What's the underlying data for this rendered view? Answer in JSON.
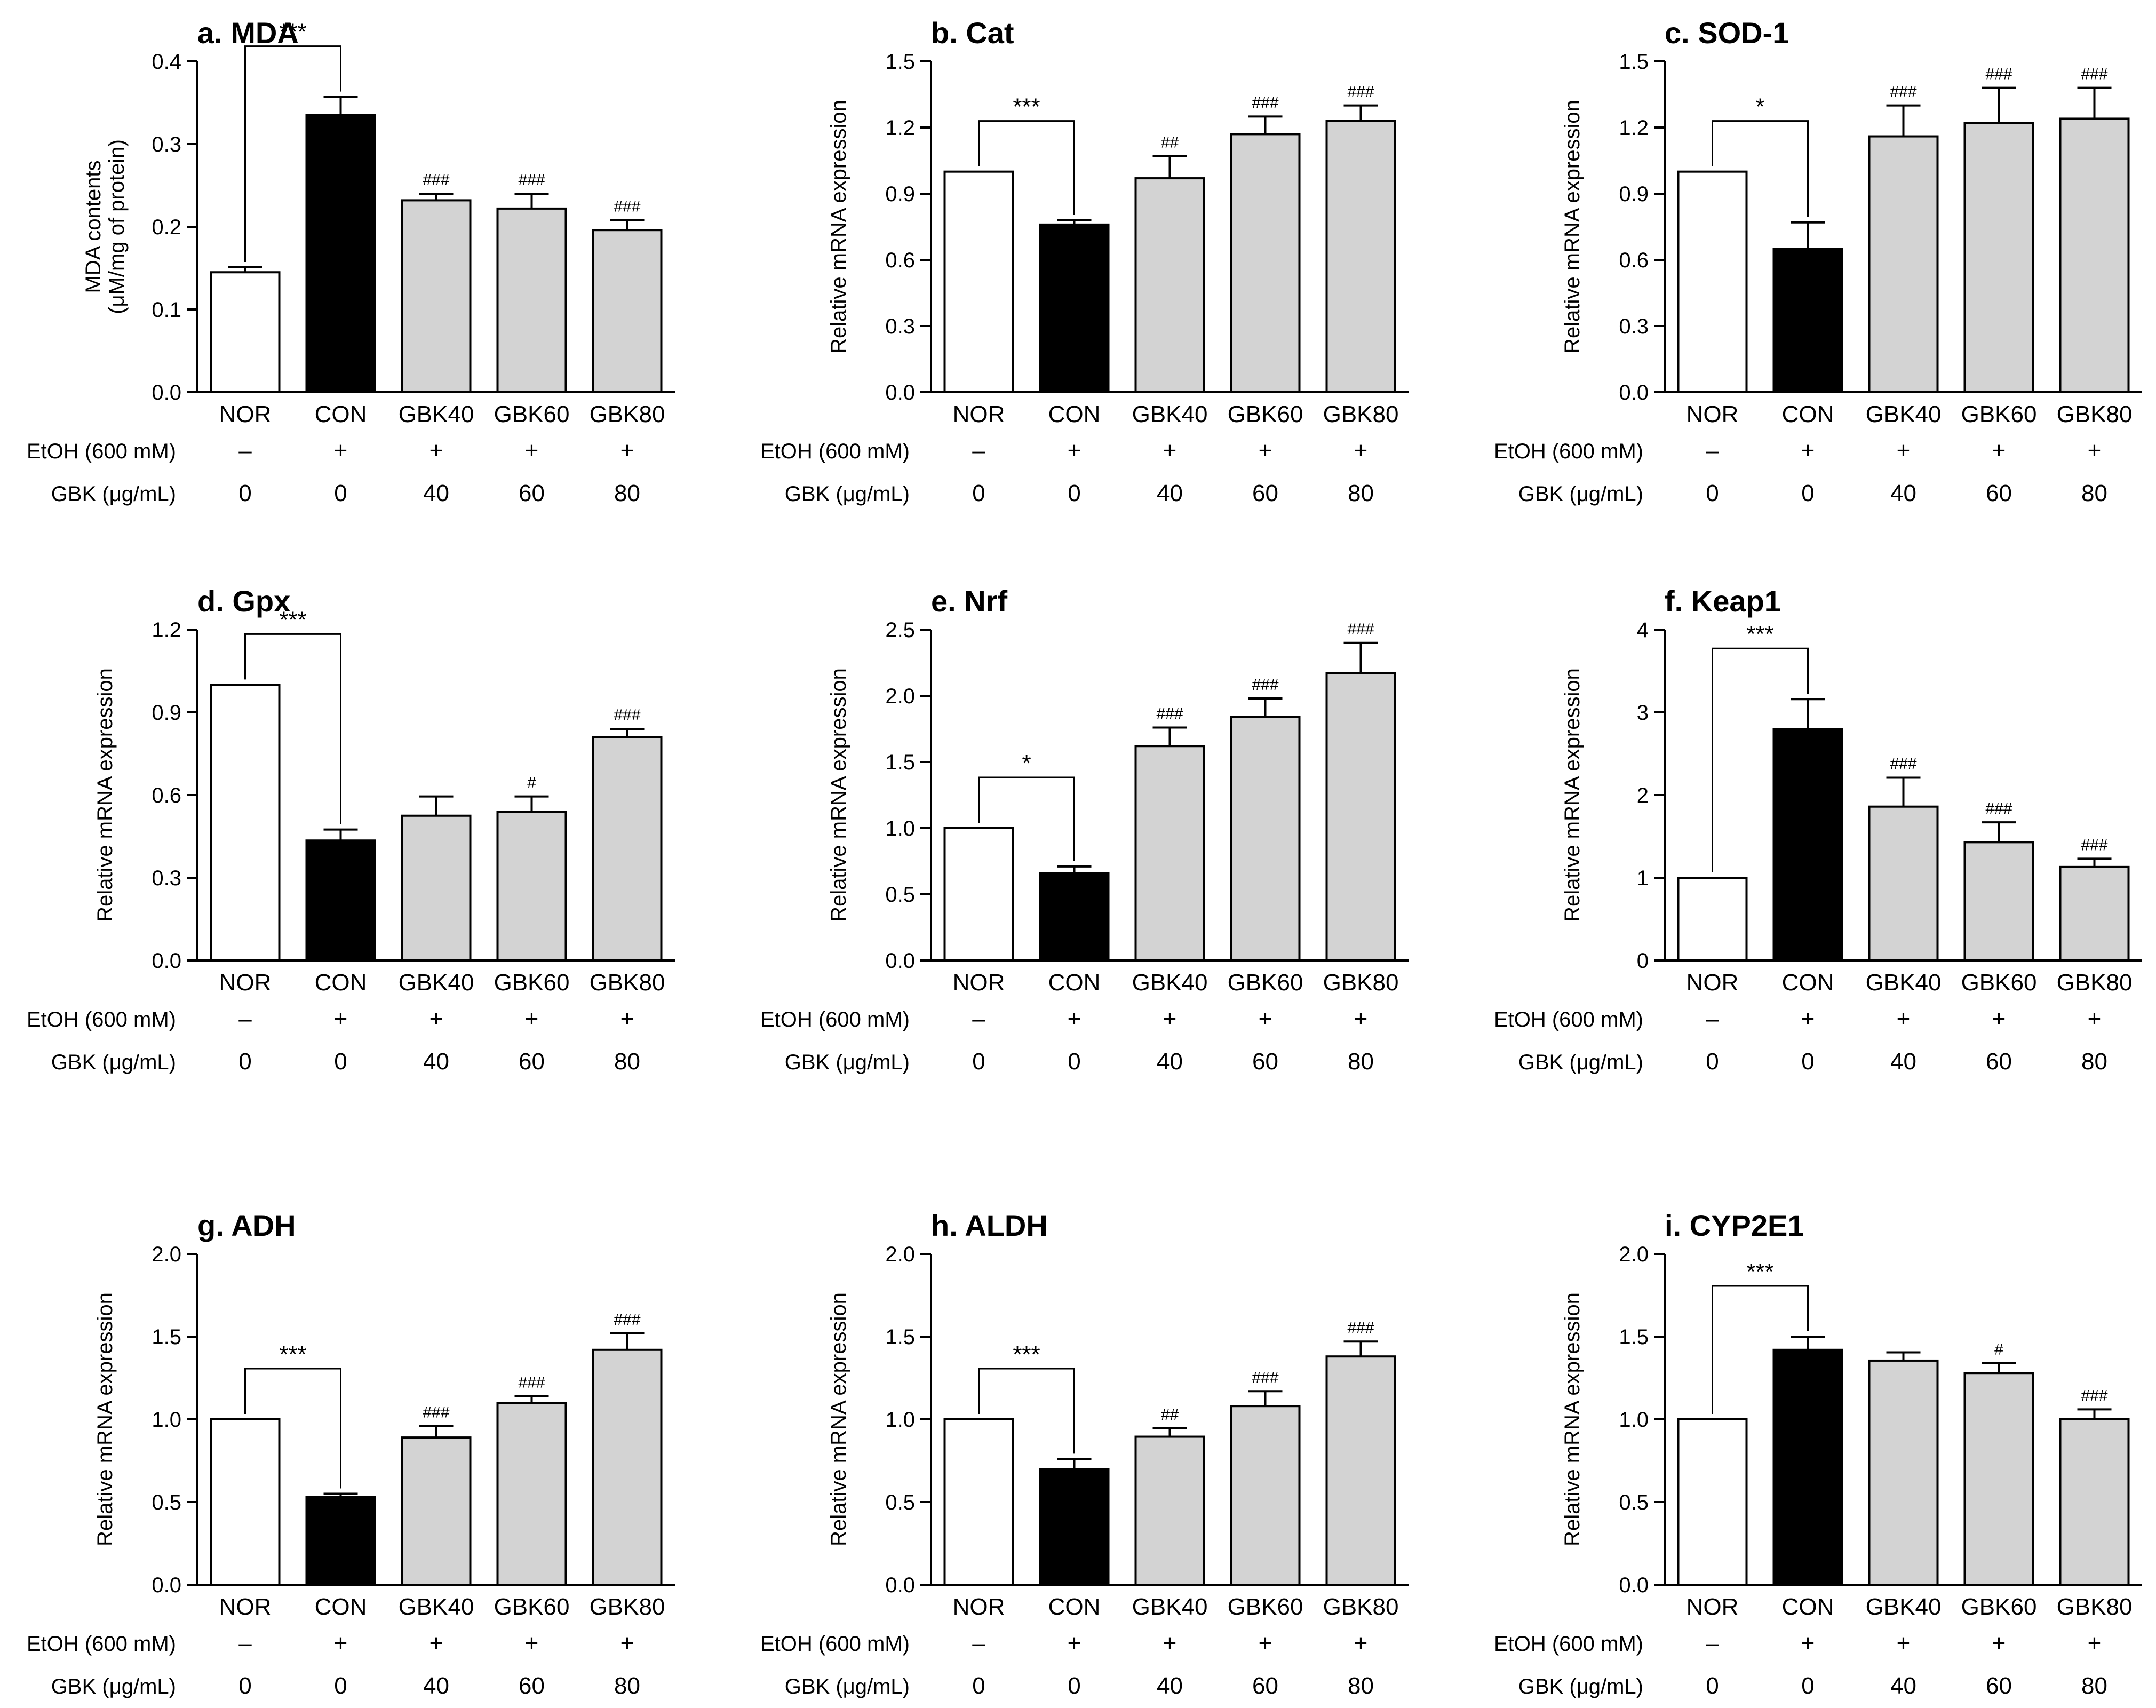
{
  "colors": {
    "nor": "#ffffff",
    "con": "#000000",
    "gbk": "#d3d3d3",
    "stroke": "#000000"
  },
  "condition_rows": {
    "etoh_label": "EtOH  (600 mM)",
    "etoh_values": [
      "–",
      "+",
      "+",
      "+",
      "+"
    ],
    "gbk_label": "GBK (μg/mL)",
    "gbk_values": [
      "0",
      "0",
      "40",
      "60",
      "80"
    ]
  },
  "chart_data": [
    {
      "type": "bar",
      "title": "a. MDA",
      "ylabel": [
        "MDA contents",
        "(μM/mg of protein)"
      ],
      "categories": [
        "NOR",
        "CON",
        "GBK40",
        "GBK60",
        "GBK80"
      ],
      "ylim": [
        0,
        0.4
      ],
      "yticks": [
        "0.0",
        "0.1",
        "0.2",
        "0.3",
        "0.4"
      ],
      "values": [
        0.145,
        0.335,
        0.232,
        0.222,
        0.196
      ],
      "errors": [
        0.006,
        0.022,
        0.008,
        0.018,
        0.012
      ],
      "bracket_label": "***",
      "significance": [
        "",
        "",
        "###",
        "###",
        "###"
      ]
    },
    {
      "type": "bar",
      "title": "b. Cat",
      "ylabel": [
        "Relative mRNA expression"
      ],
      "categories": [
        "NOR",
        "CON",
        "GBK40",
        "GBK60",
        "GBK80"
      ],
      "ylim": [
        0,
        1.5
      ],
      "yticks": [
        "0.0",
        "0.3",
        "0.6",
        "0.9",
        "1.2",
        "1.5"
      ],
      "values": [
        1.0,
        0.76,
        0.97,
        1.17,
        1.23
      ],
      "errors": [
        0,
        0.02,
        0.1,
        0.08,
        0.07
      ],
      "bracket_label": "***",
      "significance": [
        "",
        "",
        "##",
        "###",
        "###"
      ]
    },
    {
      "type": "bar",
      "title": "c. SOD-1",
      "ylabel": [
        "Relative mRNA expression"
      ],
      "categories": [
        "NOR",
        "CON",
        "GBK40",
        "GBK60",
        "GBK80"
      ],
      "ylim": [
        0,
        1.5
      ],
      "yticks": [
        "0.0",
        "0.3",
        "0.6",
        "0.9",
        "1.2",
        "1.5"
      ],
      "values": [
        1.0,
        0.65,
        1.16,
        1.22,
        1.24
      ],
      "errors": [
        0,
        0.12,
        0.14,
        0.16,
        0.14
      ],
      "bracket_label": "*",
      "significance": [
        "",
        "",
        "###",
        "###",
        "###"
      ]
    },
    {
      "type": "bar",
      "title": "d. Gpx",
      "ylabel": [
        "Relative mRNA expression"
      ],
      "categories": [
        "NOR",
        "CON",
        "GBK40",
        "GBK60",
        "GBK80"
      ],
      "ylim": [
        0,
        1.2
      ],
      "yticks": [
        "0.0",
        "0.3",
        "0.6",
        "0.9",
        "1.2"
      ],
      "values": [
        1.0,
        0.435,
        0.525,
        0.54,
        0.81
      ],
      "errors": [
        0,
        0.04,
        0.07,
        0.055,
        0.03
      ],
      "bracket_label": "***",
      "significance": [
        "",
        "",
        "",
        "#",
        "###"
      ]
    },
    {
      "type": "bar",
      "title": "e. Nrf",
      "ylabel": [
        "Relative mRNA expression"
      ],
      "categories": [
        "NOR",
        "CON",
        "GBK40",
        "GBK60",
        "GBK80"
      ],
      "ylim": [
        0,
        2.5
      ],
      "yticks": [
        "0.0",
        "0.5",
        "1.0",
        "1.5",
        "2.0",
        "2.5"
      ],
      "values": [
        1.0,
        0.66,
        1.62,
        1.84,
        2.17
      ],
      "errors": [
        0,
        0.05,
        0.14,
        0.14,
        0.23
      ],
      "bracket_label": "*",
      "significance": [
        "",
        "",
        "###",
        "###",
        "###"
      ]
    },
    {
      "type": "bar",
      "title": "f. Keap1",
      "ylabel": [
        "Relative mRNA expression"
      ],
      "categories": [
        "NOR",
        "CON",
        "GBK40",
        "GBK60",
        "GBK80"
      ],
      "ylim": [
        0,
        4
      ],
      "yticks": [
        "0",
        "1",
        "2",
        "3",
        "4"
      ],
      "values": [
        1.0,
        2.8,
        1.86,
        1.43,
        1.13
      ],
      "errors": [
        0,
        0.36,
        0.35,
        0.24,
        0.1
      ],
      "bracket_label": "***",
      "significance": [
        "",
        "",
        "###",
        "###",
        "###"
      ]
    },
    {
      "type": "bar",
      "title": "g. ADH",
      "ylabel": [
        "Relative mRNA expression"
      ],
      "categories": [
        "NOR",
        "CON",
        "GBK40",
        "GBK60",
        "GBK80"
      ],
      "ylim": [
        0,
        2.0
      ],
      "yticks": [
        "0.0",
        "0.5",
        "1.0",
        "1.5",
        "2.0"
      ],
      "values": [
        1.0,
        0.53,
        0.89,
        1.1,
        1.42
      ],
      "errors": [
        0,
        0.02,
        0.07,
        0.04,
        0.1
      ],
      "bracket_label": "***",
      "significance": [
        "",
        "",
        "###",
        "###",
        "###"
      ]
    },
    {
      "type": "bar",
      "title": "h. ALDH",
      "ylabel": [
        "Relative mRNA expression"
      ],
      "categories": [
        "NOR",
        "CON",
        "GBK40",
        "GBK60",
        "GBK80"
      ],
      "ylim": [
        0,
        2.0
      ],
      "yticks": [
        "0.0",
        "0.5",
        "1.0",
        "1.5",
        "2.0"
      ],
      "values": [
        1.0,
        0.7,
        0.895,
        1.08,
        1.38
      ],
      "errors": [
        0,
        0.06,
        0.05,
        0.09,
        0.09
      ],
      "bracket_label": "***",
      "significance": [
        "",
        "",
        "##",
        "###",
        "###"
      ]
    },
    {
      "type": "bar",
      "title": "i. CYP2E1",
      "ylabel": [
        "Relative mRNA expression"
      ],
      "categories": [
        "NOR",
        "CON",
        "GBK40",
        "GBK60",
        "GBK80"
      ],
      "ylim": [
        0,
        2.0
      ],
      "yticks": [
        "0.0",
        "0.5",
        "1.0",
        "1.5",
        "2.0"
      ],
      "values": [
        1.0,
        1.42,
        1.355,
        1.28,
        1.0
      ],
      "errors": [
        0,
        0.08,
        0.05,
        0.06,
        0.06
      ],
      "bracket_label": "***",
      "significance": [
        "",
        "",
        "",
        "#",
        "###"
      ]
    }
  ]
}
